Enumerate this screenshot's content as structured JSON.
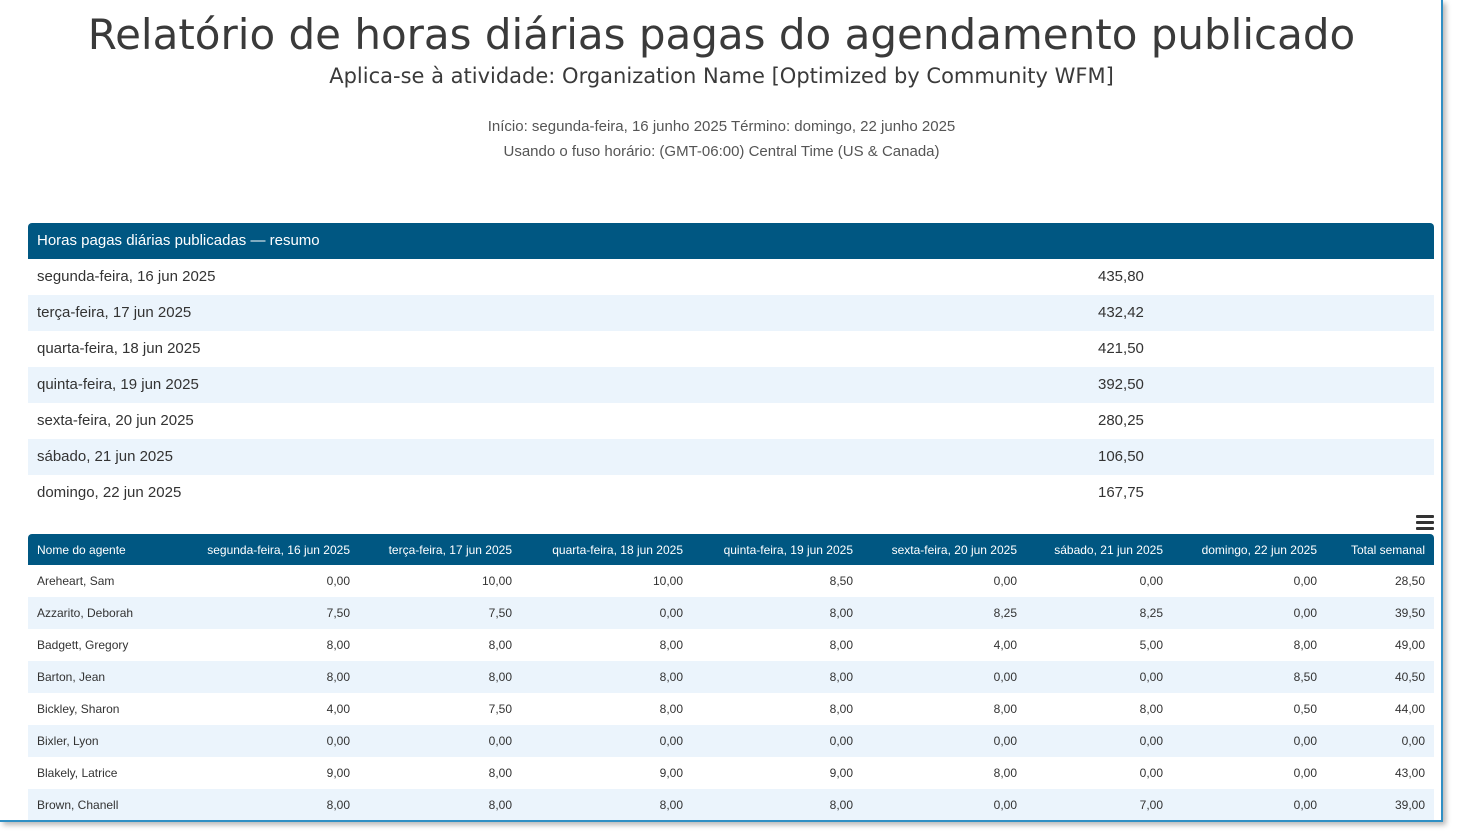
{
  "report": {
    "title": "Relatório de horas diárias pagas do agendamento publicado",
    "subtitle": "Aplica-se à atividade: Organization Name [Optimized by Community WFM]",
    "date_range": "Início: segunda-feira, 16 junho 2025 Término: domingo, 22 junho 2025",
    "timezone": "Usando o fuso horário: (GMT-06:00) Central Time (US & Canada)"
  },
  "summary": {
    "header": "Horas pagas diárias publicadas — resumo",
    "rows": [
      {
        "day": "segunda-feira, 16 jun 2025",
        "value": "435,80"
      },
      {
        "day": "terça-feira, 17 jun 2025",
        "value": "432,42"
      },
      {
        "day": "quarta-feira, 18 jun 2025",
        "value": "421,50"
      },
      {
        "day": "quinta-feira, 19 jun 2025",
        "value": "392,50"
      },
      {
        "day": "sexta-feira, 20 jun 2025",
        "value": "280,25"
      },
      {
        "day": "sábado, 21 jun 2025",
        "value": "106,50"
      },
      {
        "day": "domingo, 22 jun 2025",
        "value": "167,75"
      }
    ]
  },
  "menu_icon": "hamburger-menu-icon",
  "agents_table": {
    "columns": [
      "Nome do agente",
      "segunda-feira, 16 jun 2025",
      "terça-feira, 17 jun 2025",
      "quarta-feira, 18 jun 2025",
      "quinta-feira, 19 jun 2025",
      "sexta-feira, 20 jun 2025",
      "sábado, 21 jun 2025",
      "domingo, 22 jun 2025",
      "Total semanal"
    ],
    "rows": [
      [
        "Areheart, Sam",
        "0,00",
        "10,00",
        "10,00",
        "8,50",
        "0,00",
        "0,00",
        "0,00",
        "28,50"
      ],
      [
        "Azzarito, Deborah",
        "7,50",
        "7,50",
        "0,00",
        "8,00",
        "8,25",
        "8,25",
        "0,00",
        "39,50"
      ],
      [
        "Badgett, Gregory",
        "8,00",
        "8,00",
        "8,00",
        "8,00",
        "4,00",
        "5,00",
        "8,00",
        "49,00"
      ],
      [
        "Barton, Jean",
        "8,00",
        "8,00",
        "8,00",
        "8,00",
        "0,00",
        "0,00",
        "8,50",
        "40,50"
      ],
      [
        "Bickley, Sharon",
        "4,00",
        "7,50",
        "8,00",
        "8,00",
        "8,00",
        "8,00",
        "0,50",
        "44,00"
      ],
      [
        "Bixler, Lyon",
        "0,00",
        "0,00",
        "0,00",
        "0,00",
        "0,00",
        "0,00",
        "0,00",
        "0,00"
      ],
      [
        "Blakely, Latrice",
        "9,00",
        "8,00",
        "9,00",
        "9,00",
        "8,00",
        "0,00",
        "0,00",
        "43,00"
      ],
      [
        "Brown, Chanell",
        "8,00",
        "8,00",
        "8,00",
        "8,00",
        "0,00",
        "7,00",
        "0,00",
        "39,00"
      ]
    ]
  }
}
